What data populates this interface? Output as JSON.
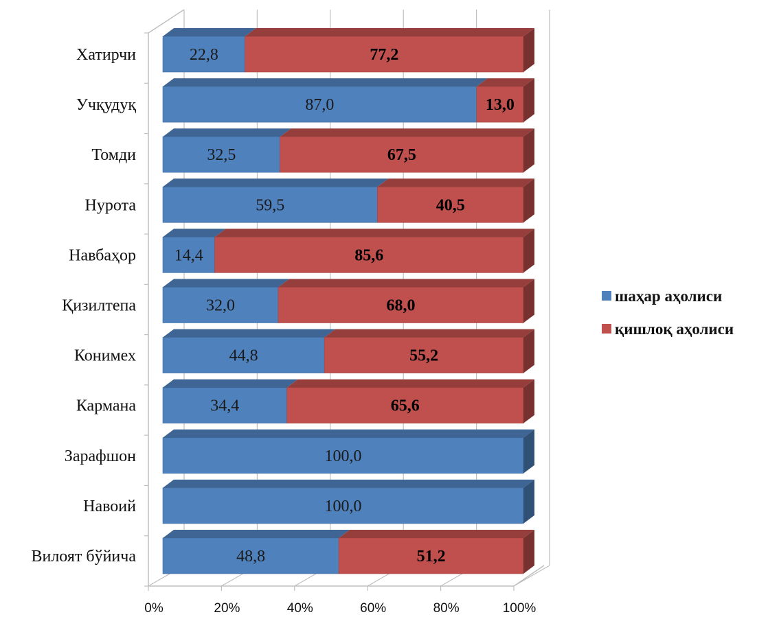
{
  "chart_data": {
    "type": "bar",
    "orientation": "horizontal",
    "stacked": true,
    "three_d": true,
    "categories": [
      "Вилоят бўйича",
      "Навоий",
      "Зарафшон",
      "Кармана",
      "Конимех",
      "Қизилтепа",
      "Навбаҳор",
      "Нурота",
      "Томди",
      "Учқудуқ",
      "Хатирчи"
    ],
    "series": [
      {
        "name": "шаҳар аҳолиси",
        "values": [
          48.8,
          100.0,
          100.0,
          34.4,
          44.8,
          32.0,
          14.4,
          59.5,
          32.5,
          87.0,
          22.8
        ],
        "labels": [
          "48,8",
          "100,0",
          "100,0",
          "34,4",
          "44,8",
          "32,0",
          "14,4",
          "59,5",
          "32,5",
          "87,0",
          "22,8"
        ],
        "color": "#4f81bd"
      },
      {
        "name": "қишлоқ аҳолиси",
        "values": [
          51.2,
          0,
          0,
          65.6,
          55.2,
          68.0,
          85.6,
          40.5,
          67.5,
          13.0,
          77.2
        ],
        "labels": [
          "51,2",
          "",
          "",
          "65,6",
          "55,2",
          "68,0",
          "85,6",
          "40,5",
          "67,5",
          "13,0",
          "77,2"
        ],
        "color": "#c0504d"
      }
    ],
    "x_ticks": [
      "0%",
      "20%",
      "40%",
      "60%",
      "80%",
      "100%"
    ],
    "xlim": [
      0,
      100
    ],
    "grid": true,
    "legend_position": "right"
  }
}
